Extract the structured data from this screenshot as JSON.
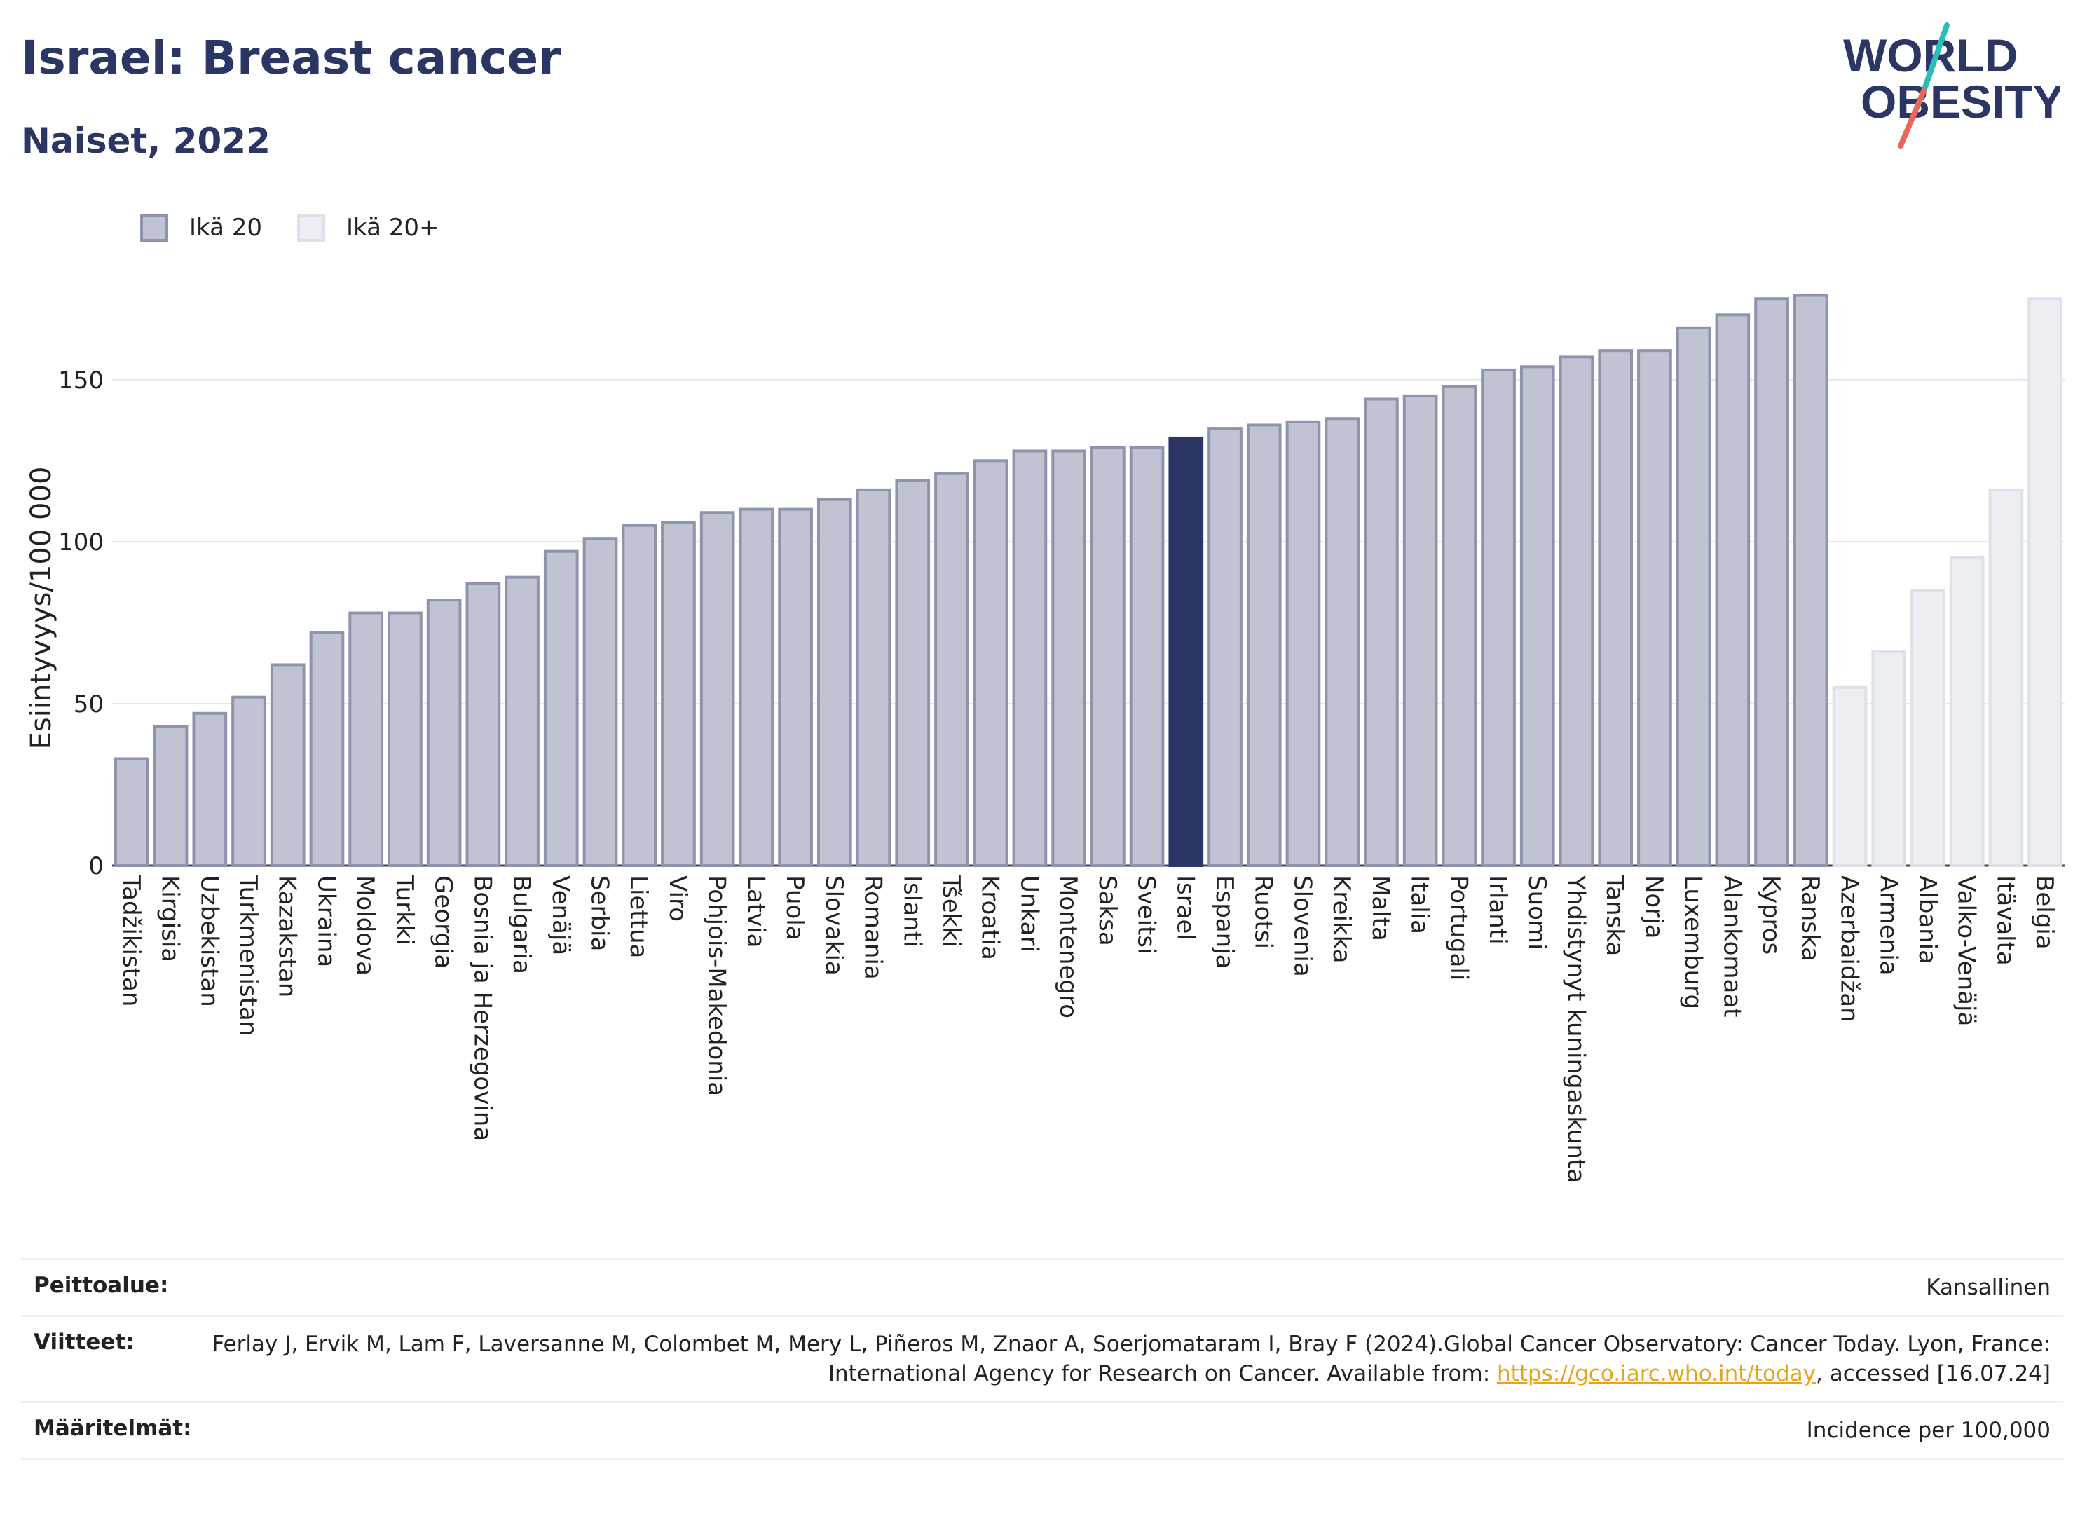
{
  "header": {
    "title": "Israel: Breast cancer",
    "subtitle": "Naiset, 2022"
  },
  "logo": {
    "line1": "WORLD",
    "line2": "OBESITY"
  },
  "legend": [
    {
      "label": "Ikä 20",
      "color": "#bfc3d2"
    },
    {
      "label": "Ikä 20+",
      "color": "#eceef3"
    }
  ],
  "chart_data": {
    "type": "bar",
    "ylabel": "Esiintyvyys/100 000",
    "ylim": [
      0,
      185
    ],
    "yticks": [
      0,
      50,
      100,
      150
    ],
    "grid": true,
    "highlight": "Israel",
    "colors": {
      "age20": "#bfc3d2",
      "age20plus": "#eceef3",
      "highlight": "#2b3664"
    },
    "categories": [
      "Tadžikistan",
      "Kirgisia",
      "Uzbekistan",
      "Turkmenistan",
      "Kazakstan",
      "Ukraina",
      "Moldova",
      "Turkki",
      "Georgia",
      "Bosnia ja Herzegovina",
      "Bulgaria",
      "Venäjä",
      "Serbia",
      "Liettua",
      "Viro",
      "Pohjois-Makedonia",
      "Latvia",
      "Puola",
      "Slovakia",
      "Romania",
      "Islanti",
      "Tšekki",
      "Kroatia",
      "Unkari",
      "Montenegro",
      "Saksa",
      "Sveitsi",
      "Israel",
      "Espanja",
      "Ruotsi",
      "Slovenia",
      "Kreikka",
      "Malta",
      "Italia",
      "Portugali",
      "Irlanti",
      "Suomi",
      "Yhdistynyt kuningaskunta",
      "Tanska",
      "Norja",
      "Luxemburg",
      "Alankomaat",
      "Kypros",
      "Ranska",
      "Azerbaidžan",
      "Armenia",
      "Albania",
      "Valko-Venäjä",
      "Itävalta",
      "Belgia"
    ],
    "values": [
      33,
      43,
      47,
      52,
      62,
      72,
      78,
      78,
      82,
      87,
      89,
      97,
      101,
      105,
      106,
      109,
      110,
      110,
      113,
      116,
      119,
      121,
      125,
      128,
      128,
      129,
      129,
      132,
      135,
      136,
      137,
      138,
      144,
      145,
      148,
      153,
      154,
      157,
      159,
      159,
      166,
      170,
      175,
      176,
      55,
      66,
      85,
      95,
      116,
      175
    ],
    "series_group": [
      "Ikä 20",
      "Ikä 20",
      "Ikä 20",
      "Ikä 20",
      "Ikä 20",
      "Ikä 20",
      "Ikä 20",
      "Ikä 20",
      "Ikä 20",
      "Ikä 20",
      "Ikä 20",
      "Ikä 20",
      "Ikä 20",
      "Ikä 20",
      "Ikä 20",
      "Ikä 20",
      "Ikä 20",
      "Ikä 20",
      "Ikä 20",
      "Ikä 20",
      "Ikä 20",
      "Ikä 20",
      "Ikä 20",
      "Ikä 20",
      "Ikä 20",
      "Ikä 20",
      "Ikä 20",
      "Ikä 20",
      "Ikä 20",
      "Ikä 20",
      "Ikä 20",
      "Ikä 20",
      "Ikä 20",
      "Ikä 20",
      "Ikä 20",
      "Ikä 20",
      "Ikä 20",
      "Ikä 20",
      "Ikä 20",
      "Ikä 20",
      "Ikä 20",
      "Ikä 20",
      "Ikä 20",
      "Ikä 20",
      "Ikä 20+",
      "Ikä 20+",
      "Ikä 20+",
      "Ikä 20+",
      "Ikä 20+",
      "Ikä 20+"
    ]
  },
  "info": {
    "coverage_label": "Peittoalue:",
    "coverage_value": "Kansallinen",
    "refs_label": "Viitteet:",
    "refs_text": "Ferlay J, Ervik M, Lam F, Laversanne M, Colombet M, Mery L, Piñeros M, Znaor A, Soerjomataram I, Bray F (2024).Global Cancer Observatory: Cancer Today. Lyon, France: International Agency for Research on Cancer. Available from:",
    "refs_link": "https://gco.iarc.who.int/today",
    "refs_accessed": ", accessed [16.07.24]",
    "defs_label": "Määritelmät:",
    "defs_value": "Incidence per 100,000"
  }
}
